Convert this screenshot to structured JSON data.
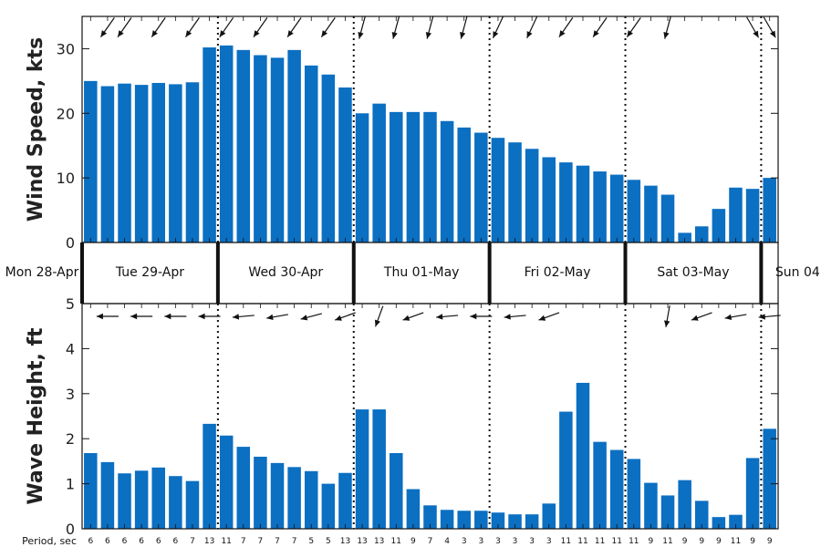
{
  "chart_data": [
    {
      "type": "bar",
      "panel": "wind",
      "ylabel": "Wind Speed, kts",
      "ylim": [
        0,
        35
      ],
      "yticks": [
        0,
        10,
        20,
        30
      ],
      "bar_color": "#0b6fc2",
      "values": [
        25.0,
        24.2,
        24.6,
        24.4,
        24.7,
        24.5,
        24.8,
        30.2,
        30.5,
        29.8,
        29.0,
        28.6,
        29.8,
        27.4,
        26.0,
        24.0,
        20.0,
        21.5,
        20.2,
        20.2,
        20.2,
        18.8,
        17.8,
        17.0,
        16.2,
        15.5,
        14.5,
        13.2,
        12.4,
        11.9,
        11.0,
        10.5,
        9.7,
        8.8,
        7.4,
        1.5,
        2.5,
        5.2,
        8.5,
        8.3,
        10.0
      ],
      "arrow_dirs_deg": [
        235,
        235,
        235,
        235,
        235,
        235,
        235,
        235,
        235,
        235,
        235,
        235,
        235,
        235,
        235,
        235,
        255,
        255,
        255,
        255,
        255,
        255,
        255,
        255,
        245,
        245,
        245,
        245,
        235,
        235,
        235,
        235,
        235,
        240,
        255,
        200,
        200,
        200,
        300,
        300,
        300
      ],
      "arrow_visible": [
        false,
        true,
        true,
        false,
        true,
        false,
        true,
        false,
        true,
        false,
        true,
        false,
        true,
        false,
        true,
        false,
        true,
        false,
        true,
        false,
        true,
        false,
        true,
        false,
        true,
        false,
        true,
        false,
        true,
        false,
        true,
        false,
        true,
        false,
        true,
        false,
        false,
        false,
        false,
        true,
        true
      ]
    },
    {
      "type": "bar",
      "panel": "wave",
      "ylabel": "Wave Height, ft",
      "ylim": [
        0,
        5
      ],
      "yticks": [
        0,
        1,
        2,
        3,
        4,
        5
      ],
      "bar_color": "#0b6fc2",
      "values": [
        1.68,
        1.48,
        1.23,
        1.29,
        1.36,
        1.17,
        1.06,
        2.33,
        2.07,
        1.82,
        1.6,
        1.46,
        1.37,
        1.28,
        1.0,
        1.24,
        2.65,
        2.65,
        1.68,
        0.88,
        0.52,
        0.42,
        0.4,
        0.4,
        0.36,
        0.32,
        0.32,
        0.56,
        2.6,
        3.24,
        1.93,
        1.75,
        1.55,
        1.02,
        0.74,
        1.08,
        0.62,
        0.26,
        0.31,
        1.57,
        2.22
      ],
      "periods": [
        "6",
        "6",
        "6",
        "6",
        "6",
        "6",
        "7",
        "13",
        "11",
        "7",
        "7",
        "7",
        "7",
        "5",
        "5",
        "13",
        "13",
        "13",
        "11",
        "9",
        "7",
        "4",
        "3",
        "3",
        "3",
        "3",
        "3",
        "3",
        "11",
        "11",
        "11",
        "11",
        "11",
        "9",
        "11",
        "9",
        "9",
        "9",
        "11",
        "9",
        "9"
      ],
      "period_label": "Period, sec",
      "arrow_dirs_deg": [
        180,
        180,
        180,
        180,
        180,
        180,
        180,
        180,
        185,
        185,
        190,
        190,
        195,
        195,
        200,
        200,
        235,
        250,
        250,
        200,
        200,
        185,
        185,
        180,
        180,
        185,
        190,
        200,
        205,
        260,
        260,
        255,
        255,
        250,
        260,
        200,
        200,
        190,
        190,
        185,
        185
      ],
      "arrow_visible": [
        false,
        true,
        false,
        true,
        false,
        true,
        false,
        true,
        false,
        true,
        false,
        true,
        false,
        true,
        false,
        true,
        false,
        true,
        false,
        true,
        false,
        true,
        false,
        true,
        false,
        true,
        false,
        true,
        false,
        false,
        false,
        false,
        false,
        false,
        true,
        false,
        true,
        false,
        true,
        false,
        true
      ]
    }
  ],
  "day_labels": [
    "Mon 28-Apr",
    "Tue 29-Apr",
    "Wed 30-Apr",
    "Thu 01-May",
    "Fri 02-May",
    "Sat 03-May",
    "Sun 04"
  ],
  "day_boundaries_bar_index": [
    -0.5,
    7.5,
    15.5,
    23.5,
    31.5,
    39.5
  ]
}
